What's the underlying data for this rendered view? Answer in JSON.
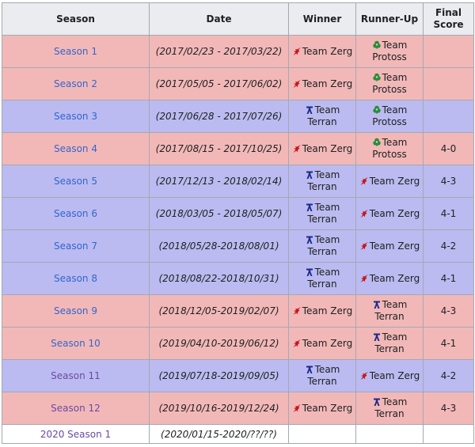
{
  "headers": {
    "season": "Season",
    "date": "Date",
    "winner": "Winner",
    "runner": "Runner-Up",
    "score_line1": "Final",
    "score_line2": "Score"
  },
  "team_labels": {
    "zerg": "Team Zerg",
    "terran_l1": "Team",
    "terran_l2": "Terran",
    "protoss_l1": "Team",
    "protoss_l2": "Protoss"
  },
  "colors": {
    "zerg_row": "#f2b8b8",
    "terran_row": "#bbbbf1",
    "link": "#3366cc",
    "visited_link": "#6b4ba1"
  },
  "rows": [
    {
      "season": "Season 1",
      "date": "(2017/02/23 - 2017/03/22)",
      "winner": "zerg",
      "runner": "protoss",
      "score": "",
      "row": "zerg"
    },
    {
      "season": "Season 2",
      "date": "(2017/05/05 - 2017/06/02)",
      "winner": "zerg",
      "runner": "protoss",
      "score": "",
      "row": "zerg"
    },
    {
      "season": "Season 3",
      "date": "(2017/06/28 - 2017/07/26)",
      "winner": "terran",
      "runner": "protoss",
      "score": "",
      "row": "terran"
    },
    {
      "season": "Season 4",
      "date": "(2017/08/15 - 2017/10/25)",
      "winner": "zerg",
      "runner": "protoss",
      "score": "4-0",
      "row": "zerg"
    },
    {
      "season": "Season 5",
      "date": "(2017/12/13 - 2018/02/14)",
      "winner": "terran",
      "runner": "zerg",
      "score": "4-3",
      "row": "terran"
    },
    {
      "season": "Season 6",
      "date": "(2018/03/05 - 2018/05/07)",
      "winner": "terran",
      "runner": "zerg",
      "score": "4-1",
      "row": "terran"
    },
    {
      "season": "Season 7",
      "date": "(2018/05/28-2018/08/01)",
      "winner": "terran",
      "runner": "zerg",
      "score": "4-2",
      "row": "terran"
    },
    {
      "season": "Season 8",
      "date": "(2018/08/22-2018/10/31)",
      "winner": "terran",
      "runner": "zerg",
      "score": "4-1",
      "row": "terran"
    },
    {
      "season": "Season 9",
      "date": "(2018/12/05-2019/02/07)",
      "winner": "zerg",
      "runner": "terran",
      "score": "4-3",
      "row": "zerg"
    },
    {
      "season": "Season 10",
      "date": "(2019/04/10-2019/06/12)",
      "winner": "zerg",
      "runner": "terran",
      "score": "4-1",
      "row": "zerg"
    },
    {
      "season": "Season 11",
      "date": "(2019/07/18-2019/09/05)",
      "winner": "terran",
      "runner": "zerg",
      "score": "4-2",
      "row": "terran",
      "visited": true
    },
    {
      "season": "Season 12",
      "date": "(2019/10/16-2019/12/24)",
      "winner": "zerg",
      "runner": "terran",
      "score": "4-3",
      "row": "zerg",
      "visited": true
    },
    {
      "season": "2020 Season 1",
      "date": "(2020/01/15-2020/??/??)",
      "winner": "",
      "runner": "",
      "score": "",
      "row": "white",
      "visited": true
    }
  ]
}
